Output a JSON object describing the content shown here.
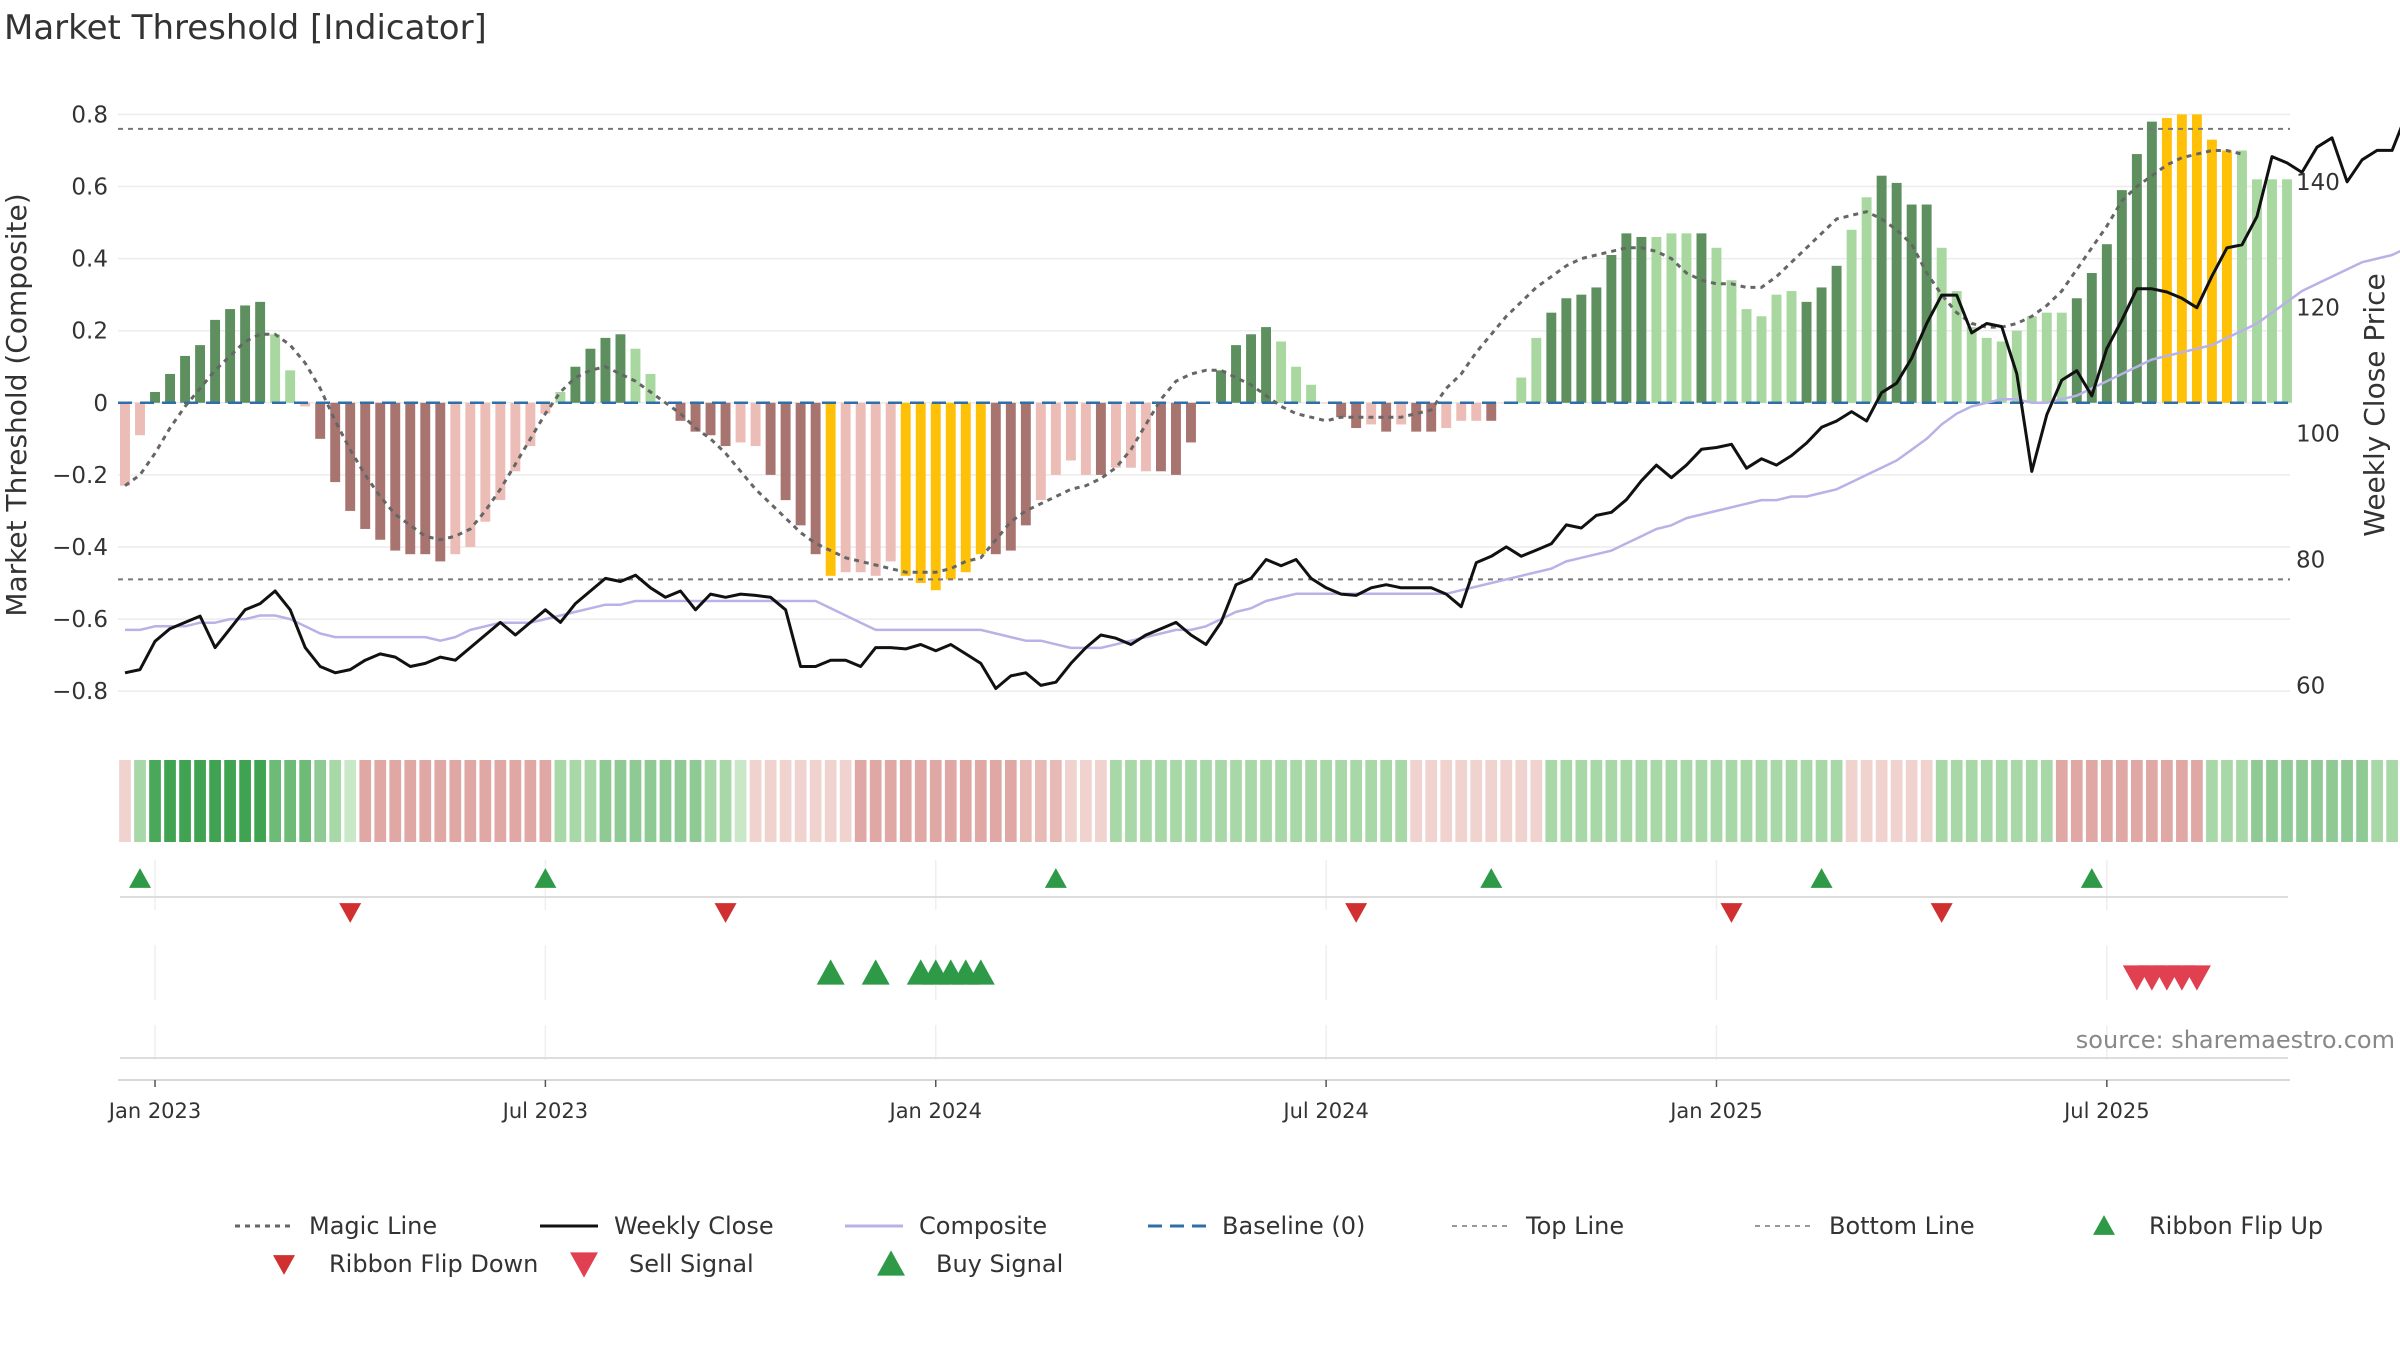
{
  "title": "Market Threshold [Indicator]",
  "source": "source: sharemaestro.com",
  "colors": {
    "dark_green": "#5e8f5e",
    "light_green": "#a8d8a0",
    "dark_red": "#a87470",
    "light_red": "#ecbcb6",
    "gold": "#ffc107",
    "magic": "#666666",
    "close": "#111111",
    "composite": "#b8b2e6",
    "baseline": "#2f6fa8",
    "thresh": "#777777",
    "flip_up": "#2e9a48",
    "flip_down": "#d03030",
    "sell": "#e04050",
    "buy": "#2e9a48"
  },
  "chart_data": {
    "type": "bar",
    "title": "Market Threshold [Indicator]",
    "ylabel": "Market Threshold (Composite)",
    "y2label": "Weekly Close Price",
    "ylim": [
      -0.88,
      0.84
    ],
    "y2lim": [
      54.5,
      153
    ],
    "yticks": [
      0.8,
      0.6,
      0.4,
      0.2,
      0,
      -0.2,
      -0.4,
      -0.6,
      -0.8
    ],
    "ytick_labels": [
      "0.8",
      "0.6",
      "0.4",
      "0.2",
      "0",
      "−0.2",
      "−0.4",
      "−0.6",
      "−0.8"
    ],
    "y2ticks": [
      140,
      120,
      100,
      80,
      60
    ],
    "y2tick_labels": [
      "140",
      "120",
      "100",
      "80",
      "60"
    ],
    "xticks": [
      {
        "label": "Jan 2023",
        "week": 2
      },
      {
        "label": "Jul 2023",
        "week": 28
      },
      {
        "label": "Jan 2024",
        "week": 54
      },
      {
        "label": "Jul 2024",
        "week": 80
      },
      {
        "label": "Jan 2025",
        "week": 106
      },
      {
        "label": "Jul 2025",
        "week": 132
      }
    ],
    "top_line": 0.76,
    "bottom_line": -0.49,
    "bars": [
      -0.23,
      -0.09,
      0.03,
      0.08,
      0.13,
      0.16,
      0.23,
      0.26,
      0.27,
      0.28,
      0.19,
      0.09,
      -0.01,
      -0.1,
      -0.22,
      -0.3,
      -0.35,
      -0.38,
      -0.41,
      -0.42,
      -0.42,
      -0.44,
      -0.42,
      -0.4,
      -0.33,
      -0.27,
      -0.19,
      -0.12,
      -0.03,
      0.03,
      0.1,
      0.15,
      0.18,
      0.19,
      0.15,
      0.08,
      0.0,
      -0.05,
      -0.08,
      -0.09,
      -0.12,
      -0.11,
      -0.12,
      -0.2,
      -0.27,
      -0.34,
      -0.42,
      -0.48,
      -0.47,
      -0.47,
      -0.48,
      -0.44,
      -0.48,
      -0.5,
      -0.52,
      -0.49,
      -0.47,
      -0.42,
      -0.42,
      -0.41,
      -0.34,
      -0.27,
      -0.2,
      -0.16,
      -0.2,
      -0.2,
      -0.18,
      -0.18,
      -0.19,
      -0.19,
      -0.2,
      -0.11,
      0.0,
      0.09,
      0.16,
      0.19,
      0.21,
      0.17,
      0.1,
      0.05,
      0.0,
      -0.04,
      -0.07,
      -0.06,
      -0.08,
      -0.06,
      -0.08,
      -0.08,
      -0.07,
      -0.05,
      -0.05,
      -0.05,
      0.0,
      0.07,
      0.18,
      0.25,
      0.29,
      0.3,
      0.32,
      0.41,
      0.47,
      0.46,
      0.46,
      0.47,
      0.47,
      0.47,
      0.43,
      0.34,
      0.26,
      0.24,
      0.3,
      0.31,
      0.28,
      0.32,
      0.38,
      0.48,
      0.57,
      0.63,
      0.61,
      0.55,
      0.55,
      0.43,
      0.31,
      0.21,
      0.18,
      0.17,
      0.2,
      0.24,
      0.25,
      0.25,
      0.29,
      0.36,
      0.44,
      0.59,
      0.69,
      0.78,
      0.79,
      0.8,
      0.8,
      0.73,
      0.7,
      0.7,
      0.62,
      0.62,
      0.62
    ],
    "bar_colors": [
      "lr",
      "lr",
      "dg",
      "dg",
      "dg",
      "dg",
      "dg",
      "dg",
      "dg",
      "dg",
      "lg",
      "lg",
      "lr",
      "dr",
      "dr",
      "dr",
      "dr",
      "dr",
      "dr",
      "dr",
      "dr",
      "dr",
      "lr",
      "lr",
      "lr",
      "lr",
      "lr",
      "lr",
      "lr",
      "lg",
      "dg",
      "dg",
      "dg",
      "dg",
      "lg",
      "lg",
      "lg",
      "dr",
      "dr",
      "dr",
      "dr",
      "lr",
      "lr",
      "dr",
      "dr",
      "dr",
      "dr",
      "go",
      "lr",
      "lr",
      "lr",
      "lr",
      "go",
      "go",
      "go",
      "go",
      "go",
      "go",
      "dr",
      "dr",
      "dr",
      "lr",
      "lr",
      "lr",
      "lr",
      "dr",
      "lr",
      "lr",
      "lr",
      "dr",
      "dr",
      "dr",
      "lr",
      "dg",
      "dg",
      "dg",
      "dg",
      "lg",
      "lg",
      "lg",
      "lr",
      "dr",
      "dr",
      "lr",
      "dr",
      "lr",
      "dr",
      "dr",
      "lr",
      "lr",
      "lr",
      "dr",
      "lr",
      "lg",
      "lg",
      "dg",
      "dg",
      "dg",
      "dg",
      "dg",
      "dg",
      "dg",
      "lg",
      "lg",
      "lg",
      "dg",
      "lg",
      "lg",
      "lg",
      "lg",
      "lg",
      "lg",
      "dg",
      "dg",
      "dg",
      "lg",
      "lg",
      "dg",
      "dg",
      "dg",
      "dg",
      "lg",
      "lg",
      "lg",
      "lg",
      "lg",
      "lg",
      "lg",
      "lg",
      "lg",
      "dg",
      "dg",
      "dg",
      "dg",
      "dg",
      "dg",
      "go",
      "go",
      "go",
      "go",
      "go",
      "lg",
      "lg",
      "lg",
      "lg",
      "dg"
    ],
    "series": [
      {
        "name": "Magic Line",
        "values": [
          -0.23,
          -0.2,
          -0.14,
          -0.07,
          -0.01,
          0.04,
          0.09,
          0.13,
          0.17,
          0.19,
          0.19,
          0.16,
          0.11,
          0.04,
          -0.05,
          -0.13,
          -0.2,
          -0.26,
          -0.31,
          -0.34,
          -0.37,
          -0.38,
          -0.37,
          -0.35,
          -0.3,
          -0.24,
          -0.17,
          -0.1,
          -0.03,
          0.03,
          0.07,
          0.09,
          0.1,
          0.08,
          0.06,
          0.03,
          0.0,
          -0.03,
          -0.07,
          -0.1,
          -0.14,
          -0.19,
          -0.24,
          -0.28,
          -0.32,
          -0.36,
          -0.39,
          -0.41,
          -0.43,
          -0.44,
          -0.45,
          -0.46,
          -0.47,
          -0.47,
          -0.47,
          -0.46,
          -0.44,
          -0.43,
          -0.38,
          -0.33,
          -0.3,
          -0.28,
          -0.26,
          -0.24,
          -0.23,
          -0.21,
          -0.18,
          -0.13,
          -0.06,
          0.01,
          0.06,
          0.08,
          0.09,
          0.09,
          0.07,
          0.05,
          0.02,
          -0.01,
          -0.03,
          -0.04,
          -0.05,
          -0.04,
          -0.04,
          -0.04,
          -0.04,
          -0.04,
          -0.03,
          -0.02,
          0.04,
          0.08,
          0.14,
          0.19,
          0.24,
          0.28,
          0.32,
          0.35,
          0.38,
          0.4,
          0.41,
          0.42,
          0.43,
          0.43,
          0.42,
          0.4,
          0.36,
          0.34,
          0.33,
          0.33,
          0.32,
          0.32,
          0.35,
          0.39,
          0.43,
          0.47,
          0.51,
          0.52,
          0.53,
          0.51,
          0.48,
          0.44,
          0.36,
          0.3,
          0.25,
          0.22,
          0.21,
          0.21,
          0.22,
          0.24,
          0.27,
          0.31,
          0.37,
          0.43,
          0.49,
          0.56,
          0.6,
          0.63,
          0.66,
          0.68,
          0.69,
          0.7,
          0.7,
          0.69
        ]
      },
      {
        "name": "Weekly Close",
        "values": [
          62,
          62.5,
          67,
          69,
          70,
          71,
          66,
          69,
          72,
          73,
          75,
          72,
          66,
          63,
          62,
          62.5,
          64,
          65,
          64.5,
          63,
          63.5,
          64.5,
          64,
          66,
          68,
          70,
          68,
          70,
          72,
          70,
          73,
          75,
          77,
          76.5,
          77.5,
          75.5,
          74,
          75,
          72,
          74.5,
          74,
          74.5,
          74.3,
          74,
          72,
          63,
          63,
          64,
          64,
          63,
          66,
          66,
          65.8,
          66.5,
          65.5,
          66.5,
          65,
          63.5,
          59.5,
          61.5,
          62,
          60,
          60.5,
          63.5,
          66,
          68,
          67.5,
          66.5,
          68,
          69,
          70,
          68,
          66.5,
          70,
          76,
          77,
          80,
          79,
          80,
          77,
          75.5,
          74.5,
          74.3,
          75.5,
          76,
          75.5,
          75.5,
          75.5,
          74.5,
          72.5,
          79.5,
          80.5,
          82,
          80.5,
          81.5,
          82.5,
          85.5,
          85,
          87,
          87.5,
          89.5,
          92.5,
          95,
          93,
          95,
          97.5,
          97.8,
          98.3,
          94.5,
          96,
          95,
          96.5,
          98.5,
          101,
          102,
          103.5,
          102,
          106.5,
          108,
          112,
          117.5,
          122,
          122,
          116,
          117.5,
          117,
          109.5,
          94,
          103,
          108.5,
          110,
          106,
          113.5,
          118,
          123,
          123,
          122.5,
          121.5,
          120,
          125,
          129.5,
          130,
          134.5,
          144,
          143,
          141.5,
          145.5,
          147,
          140,
          143.5,
          145,
          145,
          151
        ]
      },
      {
        "name": "Composite",
        "values": [
          -0.63,
          -0.63,
          -0.62,
          -0.62,
          -0.62,
          -0.61,
          -0.61,
          -0.6,
          -0.6,
          -0.59,
          -0.59,
          -0.6,
          -0.62,
          -0.64,
          -0.65,
          -0.65,
          -0.65,
          -0.65,
          -0.65,
          -0.65,
          -0.65,
          -0.66,
          -0.65,
          -0.63,
          -0.62,
          -0.61,
          -0.61,
          -0.61,
          -0.6,
          -0.59,
          -0.58,
          -0.57,
          -0.56,
          -0.56,
          -0.55,
          -0.55,
          -0.55,
          -0.55,
          -0.55,
          -0.55,
          -0.55,
          -0.55,
          -0.55,
          -0.55,
          -0.55,
          -0.55,
          -0.55,
          -0.57,
          -0.59,
          -0.61,
          -0.63,
          -0.63,
          -0.63,
          -0.63,
          -0.63,
          -0.63,
          -0.63,
          -0.63,
          -0.64,
          -0.65,
          -0.66,
          -0.66,
          -0.67,
          -0.68,
          -0.68,
          -0.68,
          -0.67,
          -0.66,
          -0.65,
          -0.64,
          -0.63,
          -0.63,
          -0.62,
          -0.6,
          -0.58,
          -0.57,
          -0.55,
          -0.54,
          -0.53,
          -0.53,
          -0.53,
          -0.53,
          -0.53,
          -0.53,
          -0.53,
          -0.53,
          -0.53,
          -0.53,
          -0.53,
          -0.52,
          -0.51,
          -0.5,
          -0.49,
          -0.48,
          -0.47,
          -0.46,
          -0.44,
          -0.43,
          -0.42,
          -0.41,
          -0.39,
          -0.37,
          -0.35,
          -0.34,
          -0.32,
          -0.31,
          -0.3,
          -0.29,
          -0.28,
          -0.27,
          -0.27,
          -0.26,
          -0.26,
          -0.25,
          -0.24,
          -0.22,
          -0.2,
          -0.18,
          -0.16,
          -0.13,
          -0.1,
          -0.06,
          -0.03,
          -0.01,
          0.0,
          0.01,
          0.01,
          0.0,
          0.0,
          0.01,
          0.02,
          0.04,
          0.06,
          0.08,
          0.1,
          0.12,
          0.13,
          0.14,
          0.15,
          0.16,
          0.18,
          0.2,
          0.22,
          0.25,
          0.28,
          0.31,
          0.33,
          0.35,
          0.37,
          0.39,
          0.4,
          0.41,
          0.43,
          0.45,
          0.47,
          0.49,
          0.51
        ]
      }
    ],
    "ribbon_colors": [
      "#f0d2cf",
      "#a8d8a8",
      "#4aa85a",
      "#3fa352",
      "#3fa352",
      "#3fa352",
      "#3fa352",
      "#3fa352",
      "#3fa352",
      "#3fa352",
      "#6dbb76",
      "#6dbb76",
      "#6dbb76",
      "#8fca95",
      "#a8d8a8",
      "#c8e8c8",
      "#e0a8a4",
      "#e0a8a4",
      "#e0a8a4",
      "#e0a8a4",
      "#e0a8a4",
      "#e0a8a4",
      "#e0a8a4",
      "#e0a8a4",
      "#e0a8a4",
      "#e0a8a4",
      "#e0a8a4",
      "#e0a8a4",
      "#e0a8a4",
      "#a8d8a8",
      "#a8d8a8",
      "#a8d8a8",
      "#8fca95",
      "#8fca95",
      "#8fca95",
      "#8fca95",
      "#8fca95",
      "#8fca95",
      "#8fca95",
      "#a8d8a8",
      "#a8d8a8",
      "#c8e8c8",
      "#f0d2cf",
      "#f0d2cf",
      "#f0d2cf",
      "#f0d2cf",
      "#f0d2cf",
      "#f0d2cf",
      "#f0d2cf",
      "#e0a8a4",
      "#e0a8a4",
      "#e0a8a4",
      "#e0a8a4",
      "#e0a8a4",
      "#e0a8a4",
      "#e0a8a4",
      "#e0a8a4",
      "#e0a8a4",
      "#e0a8a4",
      "#e0a8a4",
      "#e8bab6",
      "#e8bab6",
      "#e8bab6",
      "#f0d2cf",
      "#f0d2cf",
      "#f0d2cf",
      "#a8d8a8",
      "#a8d8a8",
      "#a8d8a8",
      "#a8d8a8",
      "#a8d8a8",
      "#a8d8a8",
      "#a8d8a8",
      "#a8d8a8",
      "#a8d8a8",
      "#a8d8a8",
      "#a8d8a8",
      "#a8d8a8",
      "#a8d8a8",
      "#a8d8a8",
      "#a8d8a8",
      "#a8d8a8",
      "#a8d8a8",
      "#a8d8a8",
      "#a8d8a8",
      "#a8d8a8",
      "#f0d2cf",
      "#f0d2cf",
      "#f0d2cf",
      "#f0d2cf",
      "#f0d2cf",
      "#f0d2cf",
      "#f0d2cf",
      "#f0d2cf",
      "#f0d2cf",
      "#a8d8a8",
      "#a8d8a8",
      "#a8d8a8",
      "#a8d8a8",
      "#a8d8a8",
      "#a8d8a8",
      "#a8d8a8",
      "#a8d8a8",
      "#a8d8a8",
      "#a8d8a8",
      "#a8d8a8",
      "#a8d8a8",
      "#a8d8a8",
      "#a8d8a8",
      "#a8d8a8",
      "#a8d8a8",
      "#a8d8a8",
      "#a8d8a8",
      "#a8d8a8",
      "#a8d8a8",
      "#f0d2cf",
      "#f0d2cf",
      "#f0d2cf",
      "#f0d2cf",
      "#f0d2cf",
      "#f0d2cf",
      "#a8d8a8",
      "#a8d8a8",
      "#a8d8a8",
      "#a8d8a8",
      "#a8d8a8",
      "#a8d8a8",
      "#a8d8a8",
      "#a8d8a8",
      "#e0a8a4",
      "#e0a8a4",
      "#e0a8a4",
      "#e0a8a4",
      "#e0a8a4",
      "#e0a8a4",
      "#e0a8a4",
      "#e0a8a4",
      "#e0a8a4",
      "#e0a8a4",
      "#a8d8a8",
      "#a8d8a8",
      "#a8d8a8",
      "#8fca95",
      "#8fca95",
      "#8fca95",
      "#8fca95",
      "#8fca95",
      "#8fca95",
      "#8fca95",
      "#8fca95",
      "#a8d8a8",
      "#a8d8a8"
    ],
    "ribbon_flip_up": [
      1,
      28,
      62,
      91,
      113,
      131
    ],
    "ribbon_flip_down": [
      15,
      40,
      82,
      107,
      121
    ],
    "buy_signals": [
      47,
      50,
      53,
      54,
      55,
      56,
      57
    ],
    "sell_signals": [
      134,
      135,
      136,
      137,
      138
    ],
    "legend": [
      "Magic Line",
      "Weekly Close",
      "Composite",
      "Baseline (0)",
      "Top Line",
      "Bottom Line",
      "Ribbon Flip Up",
      "Ribbon Flip Down",
      "Sell Signal",
      "Buy Signal"
    ],
    "legend_placement": "bottom"
  }
}
